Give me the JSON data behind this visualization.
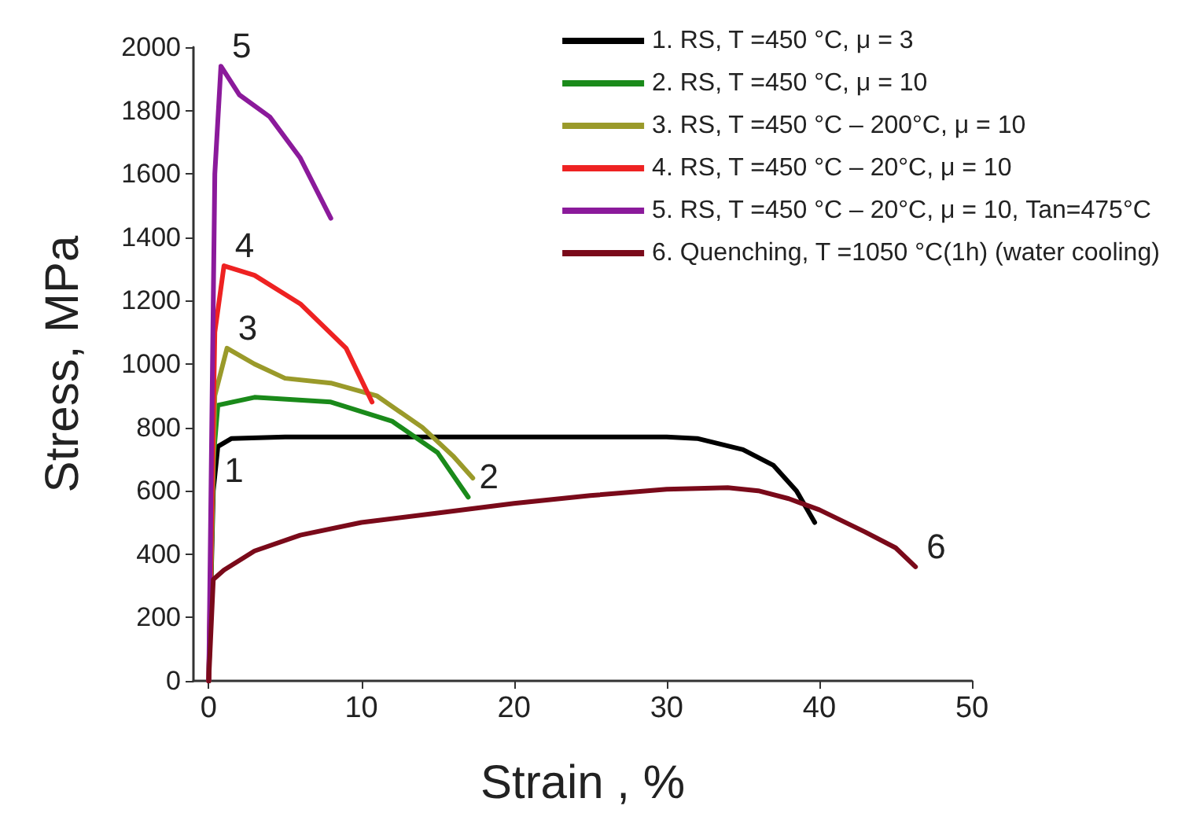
{
  "chart_data": {
    "type": "line",
    "xlabel": "Strain , %",
    "ylabel": "Stress, MPa",
    "xlim": [
      -1,
      50
    ],
    "xticks": [
      0,
      10,
      20,
      30,
      40,
      50
    ],
    "ylim": [
      0,
      2000
    ],
    "yticks": [
      0,
      200,
      400,
      600,
      800,
      1000,
      1200,
      1400,
      1600,
      1800,
      2000
    ],
    "grid": false,
    "legend": "top right",
    "marker": "none",
    "line_style": "solid",
    "series": [
      {
        "name": "1. RS, T =450 °C, μ = 3",
        "color": "#000000",
        "x": [
          0,
          0.3,
          0.6,
          1.5,
          5,
          15,
          30,
          32,
          35,
          37,
          38.5,
          39.7
        ],
        "values": [
          0,
          600,
          740,
          765,
          770,
          770,
          770,
          765,
          730,
          680,
          600,
          500
        ]
      },
      {
        "name": "2. RS, T =450 °C, μ = 10",
        "color": "#1a8a1a",
        "x": [
          0,
          0.3,
          0.6,
          3,
          8,
          12,
          15,
          17
        ],
        "values": [
          0,
          700,
          870,
          895,
          880,
          820,
          720,
          580
        ]
      },
      {
        "name": "3. RS, T =450 °C – 200°C, μ = 10",
        "color": "#9a9a2a",
        "x": [
          0,
          0.4,
          1.2,
          3,
          5,
          8,
          11,
          14,
          16,
          17.3
        ],
        "values": [
          0,
          900,
          1050,
          1000,
          955,
          940,
          900,
          800,
          710,
          640
        ]
      },
      {
        "name": "4. RS, T =450 °C – 20°C, μ = 10",
        "color": "#ee2222",
        "x": [
          0,
          0.4,
          1,
          3,
          6,
          9,
          10.7
        ],
        "values": [
          0,
          1100,
          1310,
          1280,
          1190,
          1050,
          880
        ]
      },
      {
        "name": "5. RS, T =450 °C – 20°C, μ = 10, Tan=475°C",
        "color": "#8b1a9b",
        "x": [
          0,
          0.4,
          0.8,
          2,
          4,
          6,
          8
        ],
        "values": [
          0,
          1600,
          1940,
          1850,
          1780,
          1650,
          1460
        ]
      },
      {
        "name": "6. Quenching, T =1050 °C(1h) (water cooling)",
        "color": "#7a0a1a",
        "x": [
          0,
          0.3,
          1,
          3,
          6,
          10,
          15,
          20,
          25,
          30,
          34,
          36,
          38,
          40,
          43,
          45,
          46.3
        ],
        "values": [
          0,
          320,
          350,
          410,
          460,
          500,
          530,
          560,
          585,
          605,
          610,
          600,
          575,
          540,
          470,
          420,
          360
        ]
      }
    ],
    "annotations": [
      {
        "text": "1",
        "x": 0.3,
        "y": 600
      },
      {
        "text": "2",
        "x": 17,
        "y": 580
      },
      {
        "text": "3",
        "x": 1.2,
        "y": 1050
      },
      {
        "text": "4",
        "x": 1,
        "y": 1310
      },
      {
        "text": "5",
        "x": 0.8,
        "y": 1940
      },
      {
        "text": "6",
        "x": 46.3,
        "y": 360
      }
    ]
  }
}
